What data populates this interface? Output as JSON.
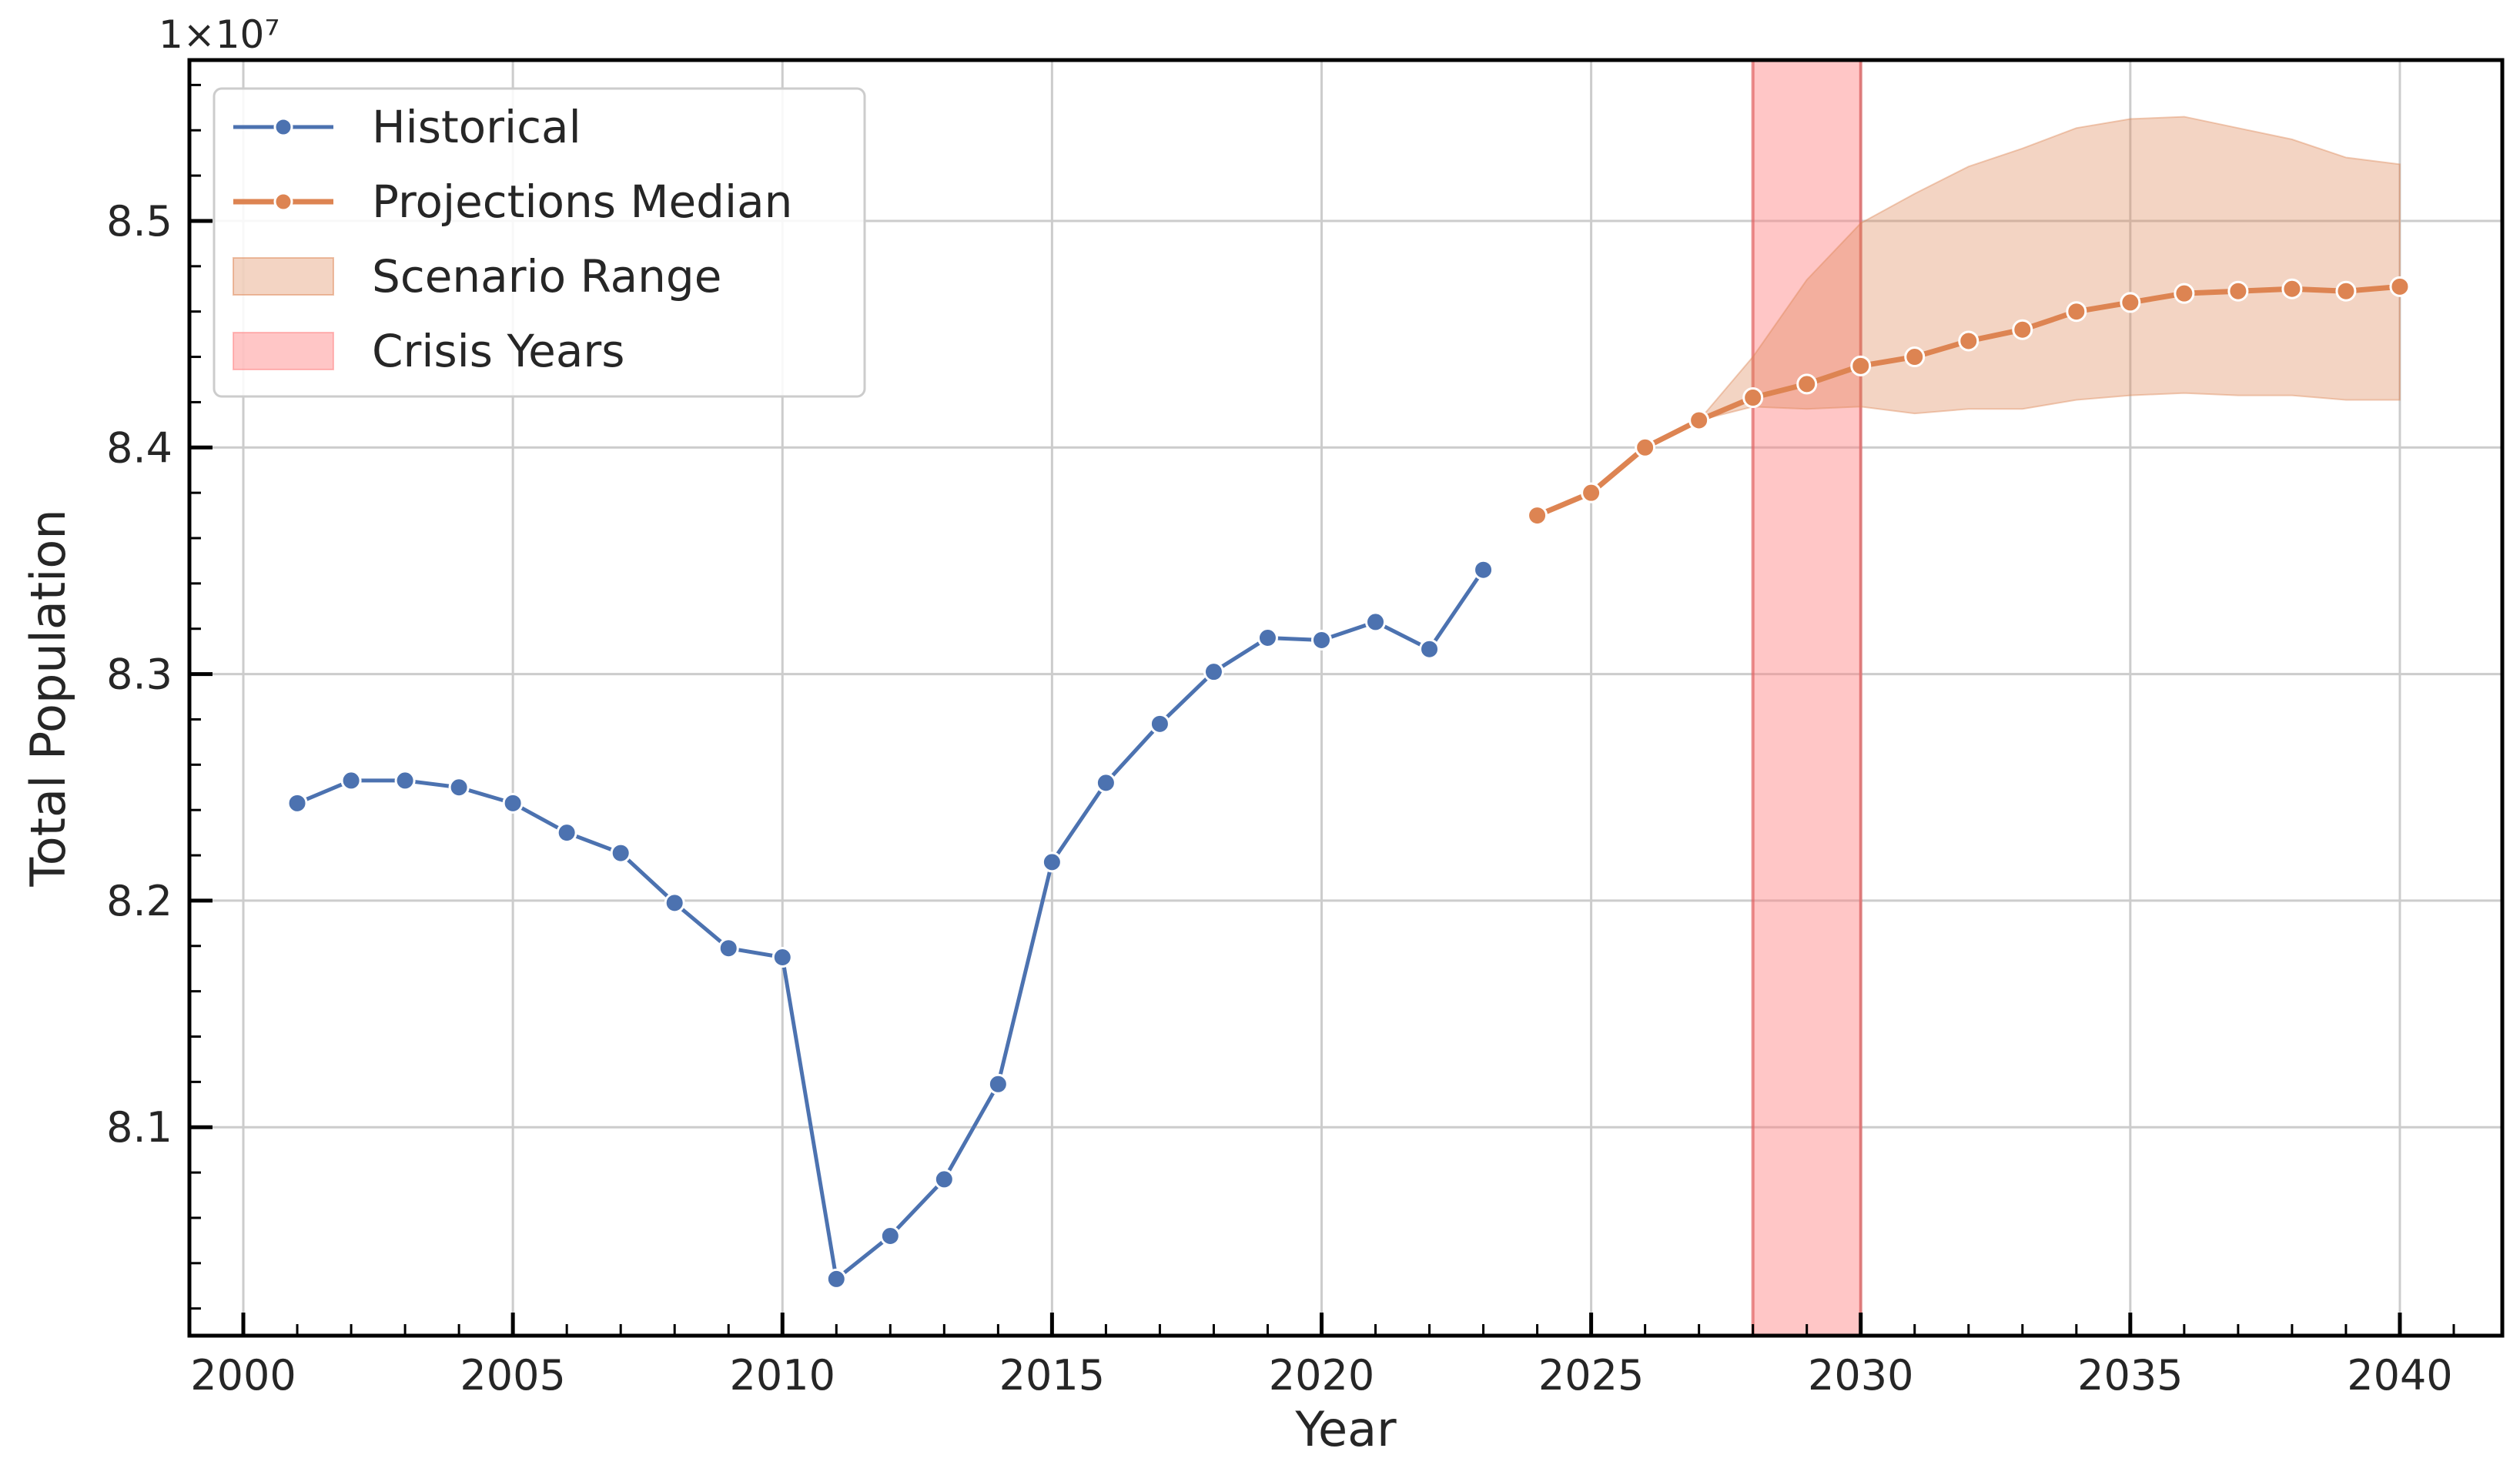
{
  "chart_data": {
    "type": "line",
    "title": "",
    "xlabel": "Year",
    "ylabel": "Total Population",
    "offset_label": "1×10⁷",
    "xlim": [
      1999,
      2041.9
    ],
    "ylim": [
      8.008,
      8.571
    ],
    "xticks": [
      2000,
      2005,
      2010,
      2015,
      2020,
      2025,
      2030,
      2035,
      2040
    ],
    "yticks": [
      8.1,
      8.2,
      8.3,
      8.4,
      8.5
    ],
    "ytick_labels": [
      "8.1",
      "8.2",
      "8.3",
      "8.4",
      "8.5"
    ],
    "grid": true,
    "legend_position": "upper-left",
    "colors": {
      "historical": "#4c72b0",
      "projection": "#dd8452",
      "band": "#dd8452",
      "crisis": "#ff8080"
    },
    "series": [
      {
        "name": "Historical",
        "x": [
          2001,
          2002,
          2003,
          2004,
          2005,
          2006,
          2007,
          2008,
          2009,
          2010,
          2011,
          2012,
          2013,
          2014,
          2015,
          2016,
          2017,
          2018,
          2019,
          2020,
          2021,
          2022,
          2023
        ],
        "y": [
          8.243,
          8.253,
          8.253,
          8.25,
          8.243,
          8.23,
          8.221,
          8.199,
          8.179,
          8.175,
          8.033,
          8.052,
          8.077,
          8.119,
          8.217,
          8.252,
          8.278,
          8.301,
          8.316,
          8.315,
          8.323,
          8.311,
          8.346
        ]
      },
      {
        "name": "Projections Median",
        "x": [
          2024,
          2025,
          2026,
          2027,
          2028,
          2029,
          2030,
          2031,
          2032,
          2033,
          2034,
          2035,
          2036,
          2037,
          2038,
          2039,
          2040
        ],
        "y": [
          8.37,
          8.38,
          8.4,
          8.412,
          8.422,
          8.428,
          8.436,
          8.44,
          8.447,
          8.452,
          8.46,
          8.464,
          8.468,
          8.469,
          8.47,
          8.469,
          8.471
        ]
      }
    ],
    "band": {
      "name": "Scenario Range",
      "x": [
        2027,
        2028,
        2029,
        2030,
        2031,
        2032,
        2033,
        2034,
        2035,
        2036,
        2037,
        2038,
        2039,
        2040
      ],
      "lower": [
        8.412,
        8.418,
        8.417,
        8.418,
        8.415,
        8.417,
        8.417,
        8.421,
        8.423,
        8.424,
        8.423,
        8.423,
        8.421,
        8.421
      ],
      "upper": [
        8.412,
        8.44,
        8.474,
        8.499,
        8.512,
        8.524,
        8.532,
        8.541,
        8.545,
        8.546,
        8.541,
        8.536,
        8.528,
        8.525
      ]
    },
    "span": {
      "name": "Crisis Years",
      "x": [
        2028,
        2030
      ]
    },
    "legend": [
      {
        "label": "Historical",
        "kind": "line-marker",
        "color": "#4c72b0"
      },
      {
        "label": "Projections Median",
        "kind": "line-marker",
        "color": "#dd8452"
      },
      {
        "label": "Scenario Range",
        "kind": "patch",
        "color": "#dd8452"
      },
      {
        "label": "Crisis Years",
        "kind": "patch",
        "color": "#ff8080"
      }
    ]
  }
}
